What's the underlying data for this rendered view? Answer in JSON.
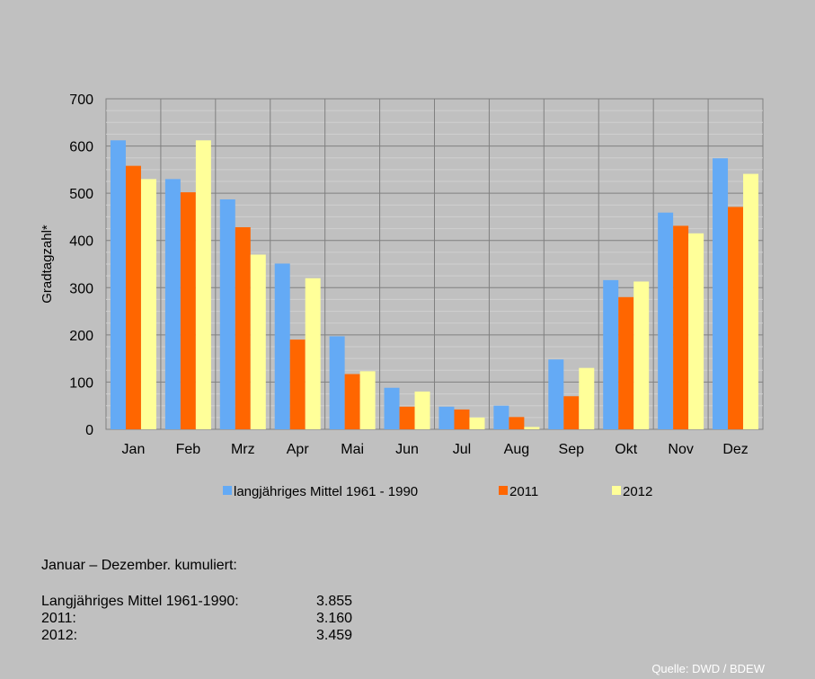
{
  "chart_data": {
    "type": "bar",
    "ylabel": "Gradtagzahl*",
    "ylim": [
      0,
      700
    ],
    "yticks": [
      0,
      100,
      200,
      300,
      400,
      500,
      600,
      700
    ],
    "grid": true,
    "legend_position": "bottom",
    "categories": [
      "Jan",
      "Feb",
      "Mrz",
      "Apr",
      "Mai",
      "Jun",
      "Jul",
      "Aug",
      "Sep",
      "Okt",
      "Nov",
      "Dez"
    ],
    "series": [
      {
        "name": "langjähriges Mittel 1961 - 1990",
        "color": "#64aaf5",
        "values": [
          612,
          530,
          487,
          351,
          197,
          88,
          48,
          50,
          148,
          316,
          459,
          574
        ]
      },
      {
        "name": "2011",
        "color": "#ff6600",
        "values": [
          558,
          502,
          428,
          190,
          117,
          48,
          42,
          26,
          70,
          280,
          431,
          471
        ]
      },
      {
        "name": "2012",
        "color": "#ffff99",
        "values": [
          530,
          612,
          370,
          320,
          123,
          80,
          25,
          5,
          130,
          313,
          415,
          541
        ]
      }
    ]
  },
  "summary": {
    "heading": "Januar – Dezember. kumuliert:",
    "rows": [
      {
        "label": "Langjähriges Mittel 1961-1990:",
        "value": "3.855"
      },
      {
        "label": "2011:",
        "value": "3.160"
      },
      {
        "label": "2012:",
        "value": "3.459"
      }
    ]
  },
  "source": "Quelle: DWD / BDEW"
}
